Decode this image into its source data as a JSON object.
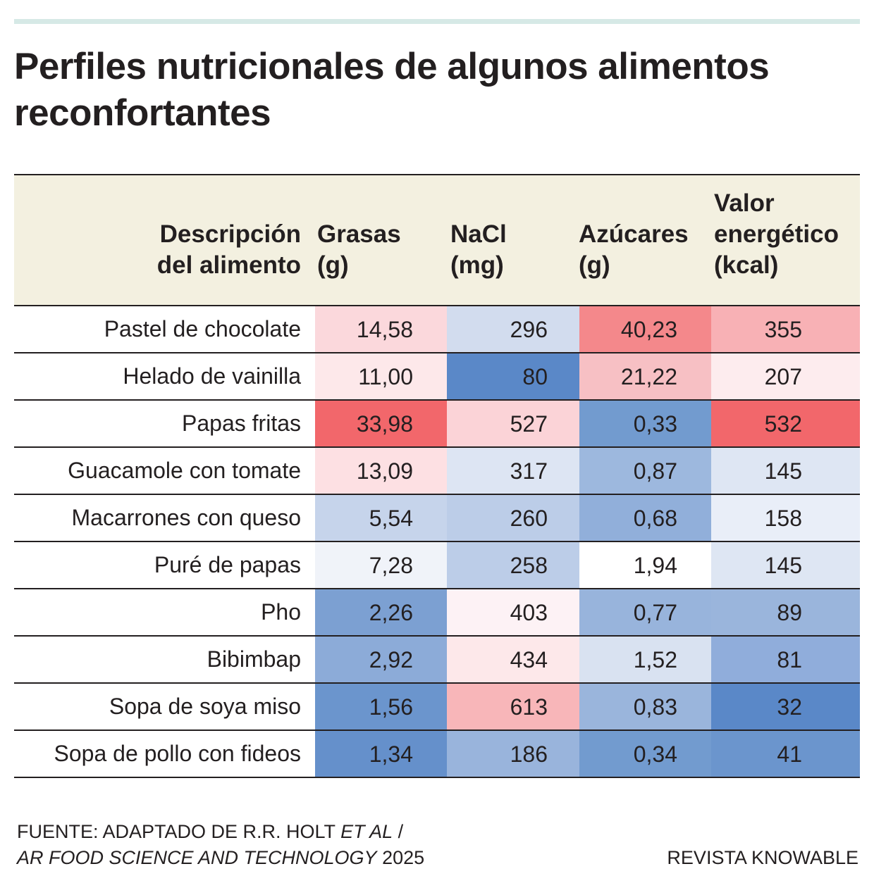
{
  "chart_data": {
    "type": "table",
    "title": "Perfiles nutricionales de algunos alimentos reconfortantes",
    "columns": [
      "Descripción\ndel alimento",
      "Grasas\n(g)",
      "NaCl\n(mg)",
      "Azúcares\n(g)",
      "Valor\nenergético\n(kcal)"
    ],
    "rows": [
      {
        "label": "Pastel de chocolate",
        "values": [
          "14,58",
          "296",
          "40,23",
          "355"
        ],
        "colors": [
          "#fbd8dc",
          "#d2dcee",
          "#f4888b",
          "#f8b1b5"
        ]
      },
      {
        "label": "Helado de vainilla",
        "values": [
          "11,00",
          "80",
          "21,22",
          "207"
        ],
        "colors": [
          "#fde8ea",
          "#5a88c8",
          "#f7c0c4",
          "#fdecee"
        ]
      },
      {
        "label": "Papas fritas",
        "values": [
          "33,98",
          "527",
          "0,33",
          "532"
        ],
        "colors": [
          "#f2676b",
          "#fbd3d7",
          "#729bcf",
          "#f2676b"
        ]
      },
      {
        "label": "Guacamole con tomate",
        "values": [
          "13,09",
          "317",
          "0,87",
          "145"
        ],
        "colors": [
          "#fde0e3",
          "#dde5f3",
          "#9db8de",
          "#dee6f3"
        ]
      },
      {
        "label": "Macarrones con queso",
        "values": [
          "5,54",
          "260",
          "0,68",
          "158"
        ],
        "colors": [
          "#c6d4eb",
          "#bccde8",
          "#91afda",
          "#e9eef8"
        ]
      },
      {
        "label": "Puré de papas",
        "values": [
          "7,28",
          "258",
          "1,94",
          "145"
        ],
        "colors": [
          "#f0f3f9",
          "#bccde8",
          "#ffffff",
          "#dee6f3"
        ]
      },
      {
        "label": "Pho",
        "values": [
          "2,26",
          "403",
          "0,77",
          "89"
        ],
        "colors": [
          "#7ca0d2",
          "#fdf2f5",
          "#98b4dc",
          "#9ab5dc"
        ]
      },
      {
        "label": "Bibimbap",
        "values": [
          "2,92",
          "434",
          "1,52",
          "81"
        ],
        "colors": [
          "#8cabd8",
          "#fde8ea",
          "#d9e2f1",
          "#90addb"
        ]
      },
      {
        "label": "Sopa de soya miso",
        "values": [
          "1,56",
          "613",
          "0,83",
          "32"
        ],
        "colors": [
          "#6b95cd",
          "#f8b6b9",
          "#9ab5dc",
          "#5a88c8"
        ]
      },
      {
        "label": "Sopa de pollo con fideos",
        "values": [
          "1,34",
          "186",
          "0,34",
          "41"
        ],
        "colors": [
          "#6590cb",
          "#99b4dc",
          "#729bcf",
          "#6b95cd"
        ]
      }
    ]
  },
  "footer": {
    "source_prefix": "FUENTE: ADAPTADO DE R.R. HOLT ",
    "source_italic_1": "ET AL",
    "source_sep": " /",
    "source_italic_2": "AR FOOD SCIENCE AND TECHNOLOGY",
    "source_year": " 2025",
    "credit": "REVISTA KNOWABLE"
  }
}
